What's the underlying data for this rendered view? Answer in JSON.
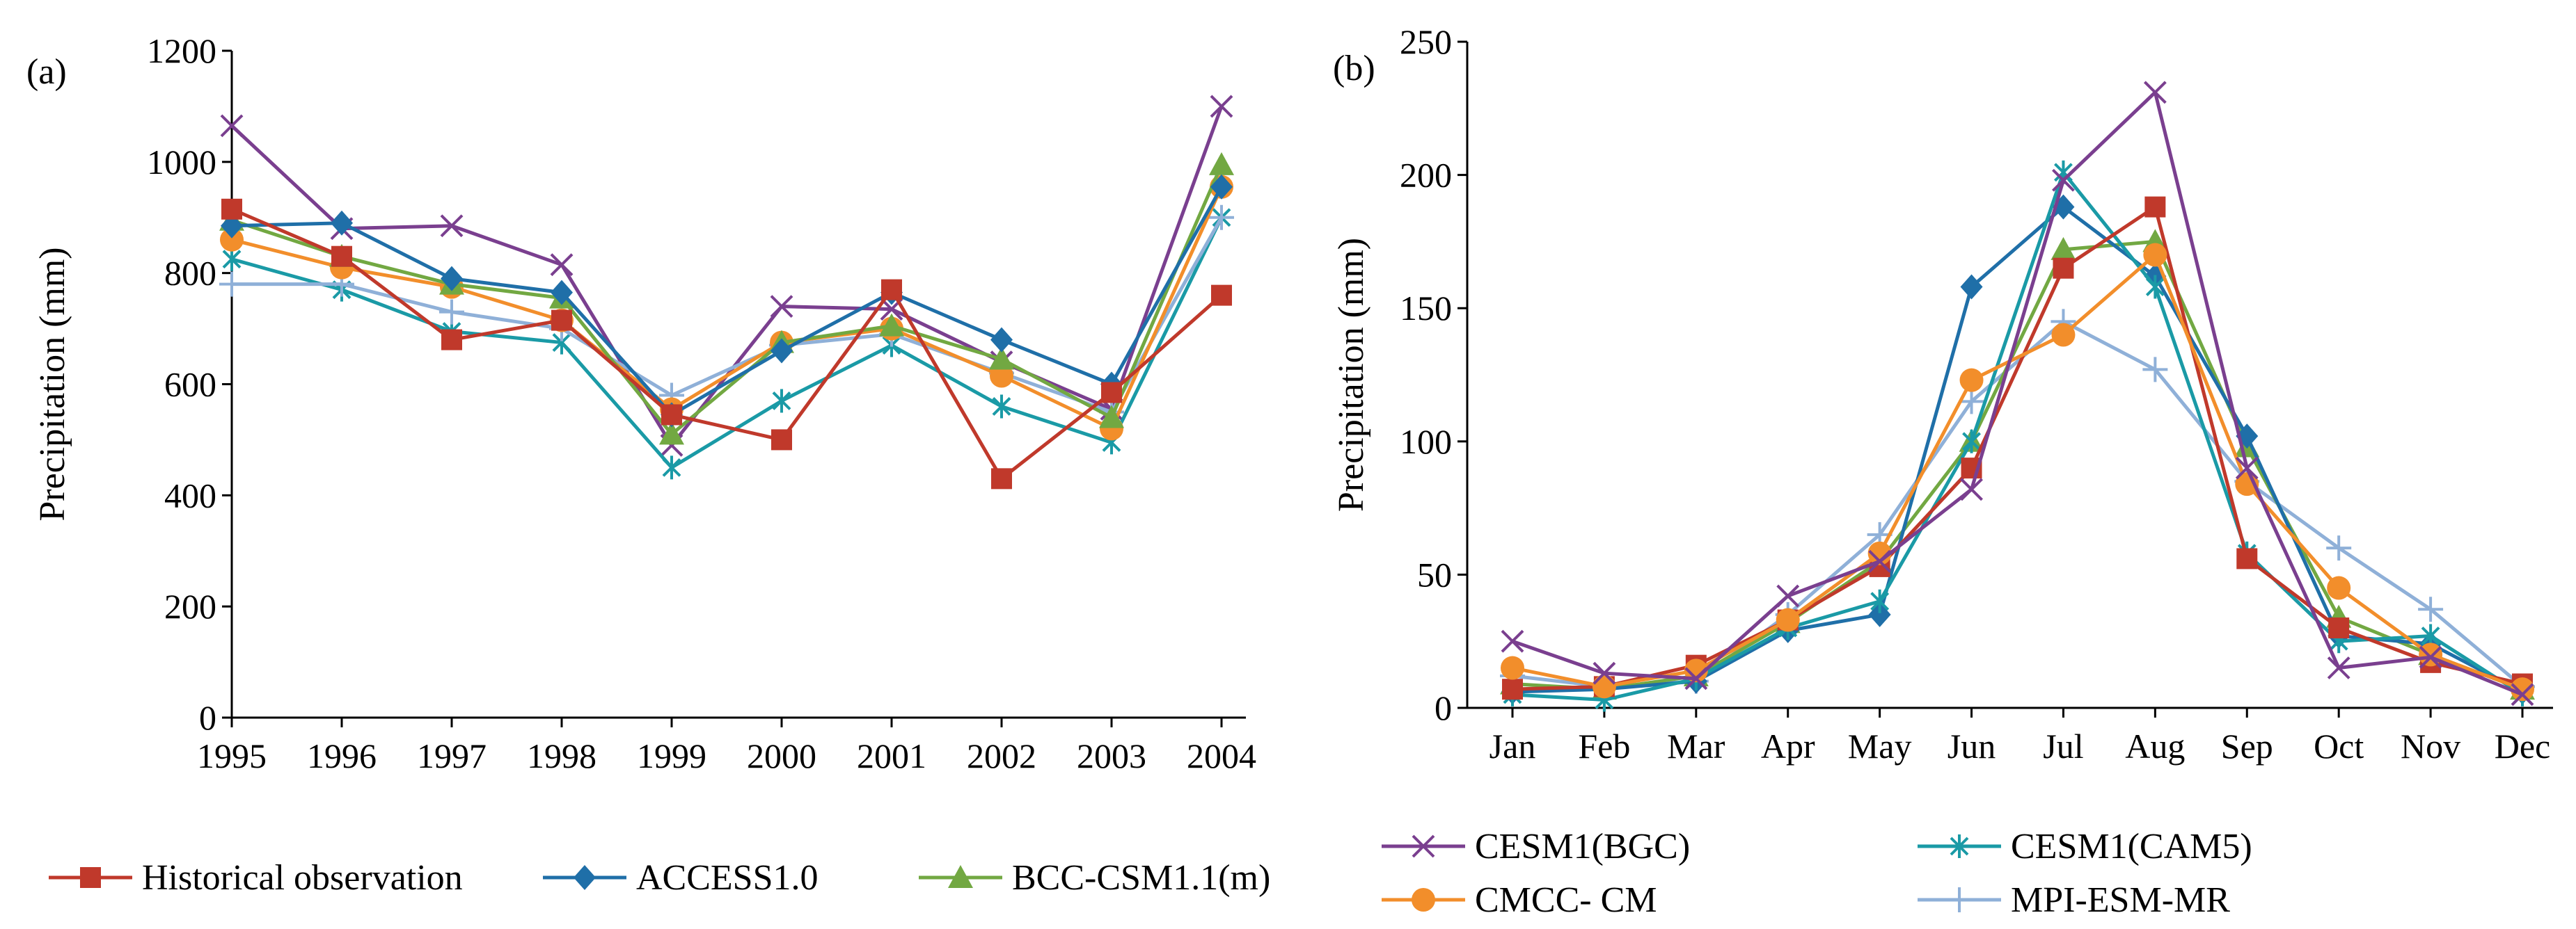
{
  "chart_data": [
    {
      "type": "line",
      "panel_label": "(a)",
      "title": "",
      "xlabel": "",
      "ylabel": "Precipitation (mm)",
      "categories": [
        "1995",
        "1996",
        "1997",
        "1998",
        "1999",
        "2000",
        "2001",
        "2002",
        "2003",
        "2004"
      ],
      "ylim": [
        0,
        1200
      ],
      "yticks": [
        "0",
        "200",
        "400",
        "600",
        "800",
        "1000",
        "1200"
      ],
      "grid": false,
      "legend_position": "bottom",
      "series": [
        {
          "name": "CESM1(BGC)",
          "color": "#7a3f8f",
          "marker": "x",
          "in_legend": false,
          "values": [
            1065,
            880,
            885,
            815,
            490,
            740,
            735,
            640,
            555,
            1100
          ]
        },
        {
          "name": "CESM1(CAM5)",
          "color": "#1a9aa6",
          "marker": "star",
          "in_legend": false,
          "values": [
            825,
            770,
            695,
            675,
            450,
            570,
            670,
            560,
            495,
            900
          ]
        },
        {
          "name": "MPI-ESM-MR",
          "color": "#8fb0d8",
          "marker": "plus",
          "in_legend": false,
          "values": [
            780,
            780,
            730,
            700,
            580,
            670,
            690,
            620,
            550,
            900
          ]
        },
        {
          "name": "CMCC- CM",
          "color": "#f28e2b",
          "marker": "circle",
          "in_legend": false,
          "values": [
            860,
            810,
            775,
            715,
            555,
            675,
            700,
            615,
            520,
            955
          ]
        },
        {
          "name": "BCC-CSM1.1(m)",
          "color": "#72a842",
          "marker": "triangle",
          "in_legend": true,
          "values": [
            895,
            830,
            780,
            755,
            510,
            675,
            705,
            645,
            540,
            995
          ]
        },
        {
          "name": "ACCESS1.0",
          "color": "#1f6fa8",
          "marker": "diamond",
          "in_legend": true,
          "values": [
            885,
            890,
            790,
            765,
            545,
            660,
            765,
            680,
            600,
            955
          ]
        },
        {
          "name": "Historical observation",
          "color": "#c0392b",
          "marker": "square",
          "in_legend": true,
          "values": [
            915,
            830,
            680,
            715,
            545,
            500,
            770,
            430,
            585,
            760
          ]
        }
      ]
    },
    {
      "type": "line",
      "panel_label": "(b)",
      "title": "",
      "xlabel": "",
      "ylabel": "Precipitation (mm)",
      "categories": [
        "Jan",
        "Feb",
        "Mar",
        "Apr",
        "May",
        "Jun",
        "Jul",
        "Aug",
        "Sep",
        "Oct",
        "Nov",
        "Dec"
      ],
      "ylim": [
        0,
        250
      ],
      "yticks": [
        "0",
        "50",
        "100",
        "150",
        "200",
        "250"
      ],
      "grid": false,
      "legend_position": "bottom",
      "series": [
        {
          "name": "MPI-ESM-MR",
          "color": "#8fb0d8",
          "marker": "plus",
          "in_legend": true,
          "values": [
            12,
            8,
            10,
            35,
            65,
            115,
            145,
            127,
            85,
            60,
            37,
            8
          ]
        },
        {
          "name": "BCC-CSM1.1(m)",
          "color": "#72a842",
          "marker": "triangle",
          "in_legend": false,
          "values": [
            9,
            7,
            12,
            32,
            55,
            100,
            172,
            175,
            98,
            34,
            20,
            7
          ]
        },
        {
          "name": "ACCESS1.0",
          "color": "#1f6fa8",
          "marker": "diamond",
          "in_legend": false,
          "values": [
            6,
            7,
            10,
            29,
            35,
            158,
            188,
            162,
            102,
            27,
            24,
            6
          ]
        },
        {
          "name": "CESM1(CAM5)",
          "color": "#1a9aa6",
          "marker": "star",
          "in_legend": true,
          "values": [
            5,
            3,
            11,
            30,
            40,
            100,
            201,
            158,
            58,
            25,
            27,
            5
          ]
        },
        {
          "name": "Historical observation",
          "color": "#c0392b",
          "marker": "square",
          "in_legend": false,
          "values": [
            7,
            8,
            16,
            33,
            53,
            90,
            165,
            188,
            56,
            30,
            17,
            9
          ]
        },
        {
          "name": "CMCC- CM",
          "color": "#f28e2b",
          "marker": "circle",
          "in_legend": true,
          "values": [
            15,
            8,
            14,
            33,
            58,
            123,
            140,
            170,
            84,
            45,
            20,
            7
          ]
        },
        {
          "name": "CESM1(BGC)",
          "color": "#7a3f8f",
          "marker": "x",
          "in_legend": true,
          "values": [
            25,
            13,
            11,
            42,
            55,
            82,
            198,
            231,
            90,
            15,
            19,
            5
          ]
        }
      ]
    }
  ],
  "legend_a": [
    {
      "name": "Historical observation",
      "color": "#c0392b",
      "marker": "square"
    },
    {
      "name": "ACCESS1.0",
      "color": "#1f6fa8",
      "marker": "diamond"
    },
    {
      "name": "BCC-CSM1.1(m)",
      "color": "#72a842",
      "marker": "triangle"
    }
  ],
  "legend_b": [
    {
      "name": "CESM1(BGC)",
      "color": "#7a3f8f",
      "marker": "x"
    },
    {
      "name": "CESM1(CAM5)",
      "color": "#1a9aa6",
      "marker": "star"
    },
    {
      "name": "CMCC- CM",
      "color": "#f28e2b",
      "marker": "circle"
    },
    {
      "name": "MPI-ESM-MR",
      "color": "#8fb0d8",
      "marker": "plus"
    }
  ]
}
